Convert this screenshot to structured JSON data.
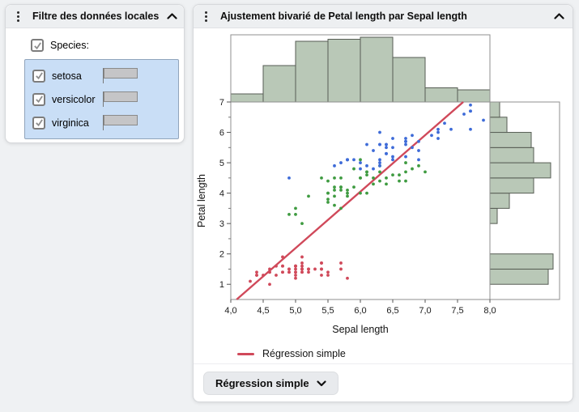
{
  "filter_panel": {
    "title": "Filtre des données locales",
    "group_label": "Species:",
    "group_checked": true,
    "items": [
      {
        "label": "setosa",
        "checked": true,
        "count": 50
      },
      {
        "label": "versicolor",
        "checked": true,
        "count": 50
      },
      {
        "label": "virginica",
        "checked": true,
        "count": 50
      }
    ],
    "max_count": 50
  },
  "report_panel": {
    "title": "Ajustement bivarié de Petal length par Sepal length",
    "legend": {
      "label": "Régression simple",
      "color": "#d0495a"
    },
    "button": {
      "label": "Régression simple"
    }
  },
  "chart_data": {
    "type": "scatter",
    "title": "Ajustement bivarié de Petal length par Sepal length",
    "xlabel": "Sepal length",
    "ylabel": "Petal length",
    "xlim": [
      4.0,
      8.0
    ],
    "ylim": [
      0.5,
      7.0
    ],
    "x_ticks": {
      "values": [
        4.0,
        4.5,
        5.0,
        5.5,
        6.0,
        6.5,
        7.0,
        7.5,
        8.0
      ],
      "labels": [
        "4,0",
        "4,5",
        "5,0",
        "5,5",
        "6,0",
        "6,5",
        "7,0",
        "7,5",
        "8,0"
      ]
    },
    "y_ticks": [
      1,
      2,
      3,
      4,
      5,
      6,
      7
    ],
    "y_minor_ticks": [
      1.5,
      2.5,
      3.5,
      4.5,
      5.5,
      6.5
    ],
    "grid": false,
    "legend_position": "bottom-left",
    "series": [
      {
        "name": "setosa",
        "color": "#d0495a",
        "points": [
          [
            5.1,
            1.4
          ],
          [
            4.9,
            1.4
          ],
          [
            4.7,
            1.3
          ],
          [
            4.6,
            1.5
          ],
          [
            5.0,
            1.4
          ],
          [
            5.4,
            1.7
          ],
          [
            4.6,
            1.4
          ],
          [
            5.0,
            1.5
          ],
          [
            4.4,
            1.4
          ],
          [
            4.9,
            1.5
          ],
          [
            5.4,
            1.5
          ],
          [
            4.8,
            1.6
          ],
          [
            4.8,
            1.4
          ],
          [
            4.3,
            1.1
          ],
          [
            5.8,
            1.2
          ],
          [
            5.7,
            1.5
          ],
          [
            5.4,
            1.3
          ],
          [
            5.1,
            1.4
          ],
          [
            5.7,
            1.7
          ],
          [
            5.1,
            1.5
          ],
          [
            5.4,
            1.7
          ],
          [
            5.1,
            1.5
          ],
          [
            4.6,
            1.0
          ],
          [
            5.1,
            1.7
          ],
          [
            4.8,
            1.9
          ],
          [
            5.0,
            1.6
          ],
          [
            5.0,
            1.6
          ],
          [
            5.2,
            1.5
          ],
          [
            5.2,
            1.4
          ],
          [
            4.7,
            1.6
          ],
          [
            4.8,
            1.6
          ],
          [
            5.4,
            1.5
          ],
          [
            5.2,
            1.5
          ],
          [
            5.5,
            1.4
          ],
          [
            4.9,
            1.5
          ],
          [
            5.0,
            1.2
          ],
          [
            5.5,
            1.3
          ],
          [
            4.9,
            1.4
          ],
          [
            4.4,
            1.3
          ],
          [
            5.1,
            1.5
          ],
          [
            5.0,
            1.3
          ],
          [
            4.5,
            1.3
          ],
          [
            4.4,
            1.3
          ],
          [
            5.0,
            1.6
          ],
          [
            5.1,
            1.9
          ],
          [
            4.8,
            1.4
          ],
          [
            5.1,
            1.6
          ],
          [
            4.6,
            1.4
          ],
          [
            5.3,
            1.5
          ],
          [
            5.0,
            1.4
          ]
        ]
      },
      {
        "name": "versicolor",
        "color": "#3f9b41",
        "points": [
          [
            7.0,
            4.7
          ],
          [
            6.4,
            4.5
          ],
          [
            6.9,
            4.9
          ],
          [
            5.5,
            4.0
          ],
          [
            6.5,
            4.6
          ],
          [
            5.7,
            4.5
          ],
          [
            6.3,
            4.7
          ],
          [
            4.9,
            3.3
          ],
          [
            6.6,
            4.6
          ],
          [
            5.2,
            3.9
          ],
          [
            5.0,
            3.5
          ],
          [
            5.9,
            4.2
          ],
          [
            6.0,
            4.0
          ],
          [
            6.1,
            4.7
          ],
          [
            5.6,
            3.6
          ],
          [
            6.7,
            4.4
          ],
          [
            5.6,
            4.5
          ],
          [
            5.8,
            4.1
          ],
          [
            6.2,
            4.5
          ],
          [
            5.6,
            3.9
          ],
          [
            5.9,
            4.8
          ],
          [
            6.1,
            4.0
          ],
          [
            6.3,
            4.9
          ],
          [
            6.1,
            4.7
          ],
          [
            6.4,
            4.3
          ],
          [
            6.6,
            4.4
          ],
          [
            6.8,
            4.8
          ],
          [
            6.7,
            5.0
          ],
          [
            6.0,
            4.5
          ],
          [
            5.7,
            3.5
          ],
          [
            5.5,
            3.8
          ],
          [
            5.5,
            3.7
          ],
          [
            5.8,
            3.9
          ],
          [
            6.0,
            5.1
          ],
          [
            5.4,
            4.5
          ],
          [
            6.0,
            4.5
          ],
          [
            6.7,
            4.7
          ],
          [
            6.3,
            4.4
          ],
          [
            5.6,
            4.1
          ],
          [
            5.5,
            4.0
          ],
          [
            5.5,
            4.4
          ],
          [
            6.1,
            4.6
          ],
          [
            5.8,
            4.0
          ],
          [
            5.0,
            3.3
          ],
          [
            5.6,
            4.2
          ],
          [
            5.7,
            4.2
          ],
          [
            5.7,
            4.2
          ],
          [
            6.2,
            4.3
          ],
          [
            5.1,
            3.0
          ],
          [
            5.7,
            4.1
          ]
        ]
      },
      {
        "name": "virginica",
        "color": "#3e6bd8",
        "points": [
          [
            6.3,
            6.0
          ],
          [
            5.8,
            5.1
          ],
          [
            7.1,
            5.9
          ],
          [
            6.3,
            5.6
          ],
          [
            6.5,
            5.8
          ],
          [
            7.6,
            6.6
          ],
          [
            4.9,
            4.5
          ],
          [
            7.3,
            6.3
          ],
          [
            6.7,
            5.8
          ],
          [
            7.2,
            6.1
          ],
          [
            6.5,
            5.1
          ],
          [
            6.4,
            5.3
          ],
          [
            6.8,
            5.5
          ],
          [
            5.7,
            5.0
          ],
          [
            5.8,
            5.1
          ],
          [
            6.4,
            5.3
          ],
          [
            6.5,
            5.5
          ],
          [
            7.7,
            6.7
          ],
          [
            7.7,
            6.9
          ],
          [
            6.0,
            5.0
          ],
          [
            6.9,
            5.7
          ],
          [
            5.6,
            4.9
          ],
          [
            7.7,
            6.7
          ],
          [
            6.3,
            4.9
          ],
          [
            6.7,
            5.7
          ],
          [
            7.2,
            6.0
          ],
          [
            6.2,
            4.8
          ],
          [
            6.1,
            4.9
          ],
          [
            6.4,
            5.6
          ],
          [
            7.2,
            5.8
          ],
          [
            7.4,
            6.1
          ],
          [
            7.9,
            6.4
          ],
          [
            6.4,
            5.6
          ],
          [
            6.3,
            5.1
          ],
          [
            6.1,
            5.6
          ],
          [
            7.7,
            6.1
          ],
          [
            6.3,
            5.6
          ],
          [
            6.4,
            5.5
          ],
          [
            6.0,
            4.8
          ],
          [
            6.9,
            5.4
          ],
          [
            6.7,
            5.6
          ],
          [
            6.9,
            5.1
          ],
          [
            5.8,
            5.1
          ],
          [
            6.8,
            5.9
          ],
          [
            6.7,
            5.7
          ],
          [
            6.7,
            5.2
          ],
          [
            6.3,
            5.0
          ],
          [
            6.5,
            5.2
          ],
          [
            6.2,
            5.4
          ],
          [
            5.9,
            5.1
          ]
        ]
      }
    ],
    "regression": {
      "name": "Régression simple",
      "slope": 1.8584,
      "intercept": -7.1014,
      "color": "#d0495a"
    },
    "top_histogram": {
      "variable": "Sepal length",
      "bin_start": 4.0,
      "bin_width": 0.5,
      "counts": [
        4,
        18,
        30,
        31,
        32,
        22,
        7,
        6
      ],
      "fill": "#b9c8b7",
      "stroke": "#575d54"
    },
    "right_histogram": {
      "variable": "Petal length",
      "bin_start": 1.0,
      "bin_width": 0.5,
      "counts": [
        24,
        26,
        0,
        0,
        3,
        8,
        18,
        25,
        18,
        17,
        7,
        4
      ],
      "fill": "#b9c8b7",
      "stroke": "#575d54"
    }
  }
}
